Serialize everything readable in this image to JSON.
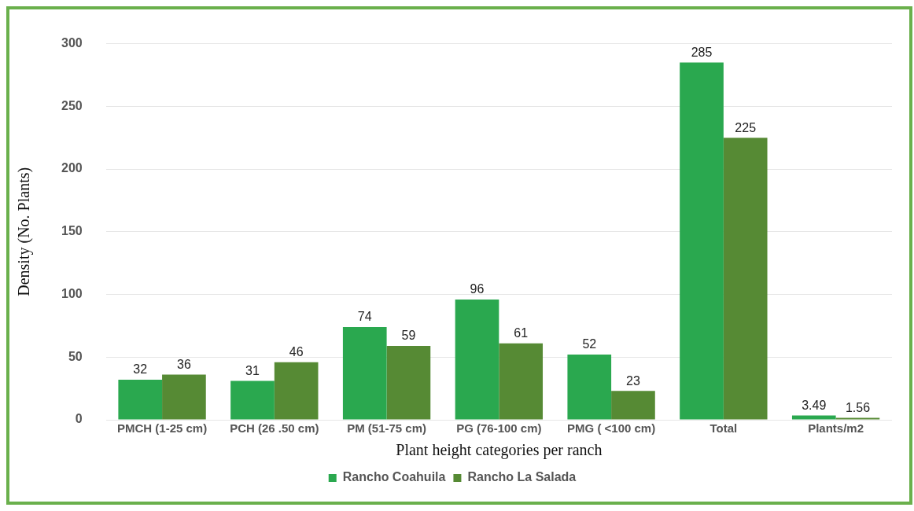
{
  "chart_data": {
    "type": "bar",
    "xlabel": "Plant height categories per ranch",
    "ylabel": "Density (No. Plants)",
    "categories": [
      "PMCH (1-25 cm)",
      "PCH (26 .50 cm)",
      "PM (51-75 cm)",
      "PG (76-100 cm)",
      "PMG ( <100 cm)",
      "Total",
      "Plants/m2"
    ],
    "series": [
      {
        "name": "Rancho Coahuila",
        "color": "#2aa84f",
        "values": [
          32,
          31,
          74,
          96,
          52,
          285,
          3.49
        ]
      },
      {
        "name": "Rancho La Salada",
        "color": "#568a34",
        "values": [
          36,
          46,
          59,
          61,
          23,
          225,
          1.56
        ]
      }
    ],
    "ylim": [
      0,
      300
    ],
    "yticks": [
      0,
      50,
      100,
      150,
      200,
      250,
      300
    ],
    "grid": "y",
    "legend": "bottom",
    "data_labels": true
  }
}
